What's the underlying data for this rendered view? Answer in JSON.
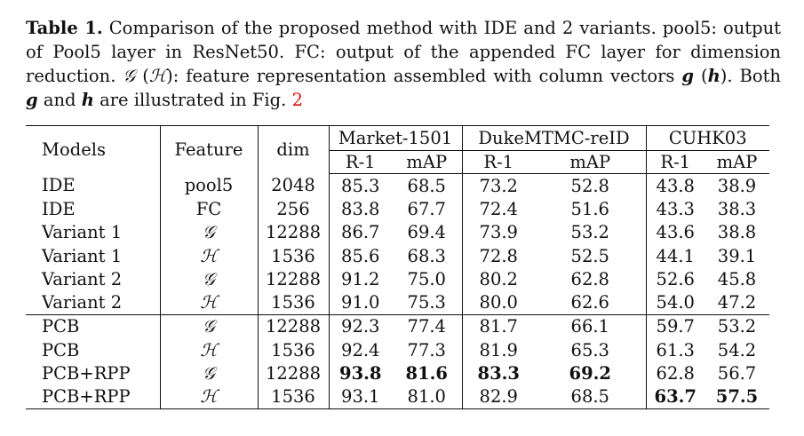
{
  "caption": {
    "label": "Table 1.",
    "text1": " Comparison of the proposed method with IDE and 2 variants. pool5: output of Pool5 layer in ResNet50. FC: output of the appended FC layer for dimension reduction. ",
    "sym_g": "𝒢",
    "text2": " (",
    "sym_h": "ℋ",
    "text3": "): feature representation assembled with column vectors ",
    "vec_g": "g",
    "text4": " (",
    "vec_h": "h",
    "text5": "). Both ",
    "vec_g2": "g",
    "text6": " and ",
    "vec_h2": "h",
    "text7": " are illustrated in Fig. ",
    "fig_ref": "2"
  },
  "table": {
    "headers": {
      "models": "Models",
      "feature": "Feature",
      "dim": "dim",
      "datasets": [
        "Market-1501",
        "DukeMTMC-reID",
        "CUHK03"
      ],
      "metrics": [
        "R-1",
        "mAP",
        "R-1",
        "mAP",
        "R-1",
        "mAP"
      ]
    },
    "rows": [
      [
        "IDE",
        "pool5",
        "2048",
        "85.3",
        "68.5",
        "73.2",
        "52.8",
        "43.8",
        "38.9"
      ],
      [
        "IDE",
        "FC",
        "256",
        "83.8",
        "67.7",
        "72.4",
        "51.6",
        "43.3",
        "38.3"
      ],
      [
        "Variant 1",
        "𝒢",
        "12288",
        "86.7",
        "69.4",
        "73.9",
        "53.2",
        "43.6",
        "38.8"
      ],
      [
        "Variant 1",
        "ℋ",
        "1536",
        "85.6",
        "68.3",
        "72.8",
        "52.5",
        "44.1",
        "39.1"
      ],
      [
        "Variant 2",
        "𝒢",
        "12288",
        "91.2",
        "75.0",
        "80.2",
        "62.8",
        "52.6",
        "45.8"
      ],
      [
        "Variant 2",
        "ℋ",
        "1536",
        "91.0",
        "75.3",
        "80.0",
        "62.6",
        "54.0",
        "47.2"
      ],
      [
        "PCB",
        "𝒢",
        "12288",
        "92.3",
        "77.4",
        "81.7",
        "66.1",
        "59.7",
        "53.2"
      ],
      [
        "PCB",
        "ℋ",
        "1536",
        "92.4",
        "77.3",
        "81.9",
        "65.3",
        "61.3",
        "54.2"
      ],
      [
        "PCB+RPP",
        "𝒢",
        "12288",
        "93.8",
        "81.6",
        "83.3",
        "69.2",
        "62.8",
        "56.7"
      ],
      [
        "PCB+RPP",
        "ℋ",
        "1536",
        "93.1",
        "81.0",
        "82.9",
        "68.5",
        "63.7",
        "57.5"
      ]
    ]
  }
}
